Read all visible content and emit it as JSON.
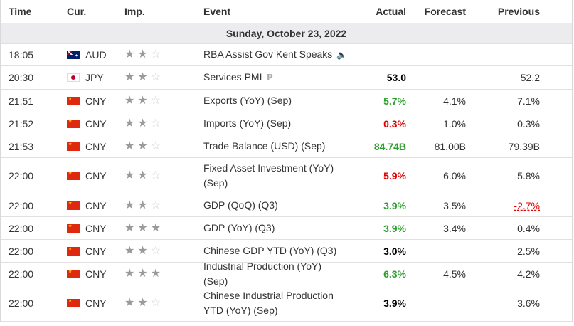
{
  "header": {
    "time": "Time",
    "currency": "Cur.",
    "importance": "Imp.",
    "event": "Event",
    "actual": "Actual",
    "forecast": "Forecast",
    "previous": "Previous"
  },
  "day_label": "Sunday, October 23, 2022",
  "colors": {
    "green": "#2ca02c",
    "red": "#e00000",
    "star_on": "#9a9a9a",
    "star_off": "#d0d0d0",
    "day_bg": "#ececee"
  },
  "events": [
    {
      "time": "18:05",
      "currency": "AUD",
      "flag": "flag-au-icon",
      "stars": 2,
      "event": "RBA Assist Gov Kent Speaks",
      "event_icon": "speaker-icon",
      "actual": "",
      "actual_color": "black",
      "forecast": "",
      "previous": "",
      "previous_color": "black"
    },
    {
      "time": "20:30",
      "currency": "JPY",
      "flag": "flag-jp-icon",
      "stars": 2,
      "event": "Services PMI",
      "event_icon": "preliminary-icon",
      "event_icon_text": "P",
      "actual": "53.0",
      "actual_color": "black",
      "forecast": "",
      "previous": "52.2",
      "previous_color": "black"
    },
    {
      "time": "21:51",
      "currency": "CNY",
      "flag": "flag-cn-icon",
      "stars": 2,
      "event": "Exports (YoY) (Sep)",
      "actual": "5.7%",
      "actual_color": "green",
      "forecast": "4.1%",
      "previous": "7.1%",
      "previous_color": "black"
    },
    {
      "time": "21:52",
      "currency": "CNY",
      "flag": "flag-cn-icon",
      "stars": 2,
      "event": "Imports (YoY) (Sep)",
      "actual": "0.3%",
      "actual_color": "red",
      "forecast": "1.0%",
      "previous": "0.3%",
      "previous_color": "black"
    },
    {
      "time": "21:53",
      "currency": "CNY",
      "flag": "flag-cn-icon",
      "stars": 2,
      "event": "Trade Balance (USD) (Sep)",
      "actual": "84.74B",
      "actual_color": "green",
      "forecast": "81.00B",
      "previous": "79.39B",
      "previous_color": "black"
    },
    {
      "time": "22:00",
      "currency": "CNY",
      "flag": "flag-cn-icon",
      "stars": 2,
      "event": "Fixed Asset Investment (YoY) (Sep)",
      "actual": "5.9%",
      "actual_color": "red",
      "forecast": "6.0%",
      "previous": "5.8%",
      "previous_color": "black"
    },
    {
      "time": "22:00",
      "currency": "CNY",
      "flag": "flag-cn-icon",
      "stars": 2,
      "event": "GDP (QoQ) (Q3)",
      "actual": "3.9%",
      "actual_color": "green",
      "forecast": "3.5%",
      "previous": "-2.7%",
      "previous_color": "red"
    },
    {
      "time": "22:00",
      "currency": "CNY",
      "flag": "flag-cn-icon",
      "stars": 3,
      "event": "GDP (YoY) (Q3)",
      "actual": "3.9%",
      "actual_color": "green",
      "forecast": "3.4%",
      "previous": "0.4%",
      "previous_color": "black"
    },
    {
      "time": "22:00",
      "currency": "CNY",
      "flag": "flag-cn-icon",
      "stars": 2,
      "event": "Chinese GDP YTD (YoY) (Q3)",
      "actual": "3.0%",
      "actual_color": "black",
      "forecast": "",
      "previous": "2.5%",
      "previous_color": "black"
    },
    {
      "time": "22:00",
      "currency": "CNY",
      "flag": "flag-cn-icon",
      "stars": 3,
      "event": "Industrial Production (YoY) (Sep)",
      "actual": "6.3%",
      "actual_color": "green",
      "forecast": "4.5%",
      "previous": "4.2%",
      "previous_color": "black"
    },
    {
      "time": "22:00",
      "currency": "CNY",
      "flag": "flag-cn-icon",
      "stars": 2,
      "event": "Chinese Industrial Production YTD (YoY) (Sep)",
      "actual": "3.9%",
      "actual_color": "black",
      "forecast": "",
      "previous": "3.6%",
      "previous_color": "black"
    }
  ]
}
